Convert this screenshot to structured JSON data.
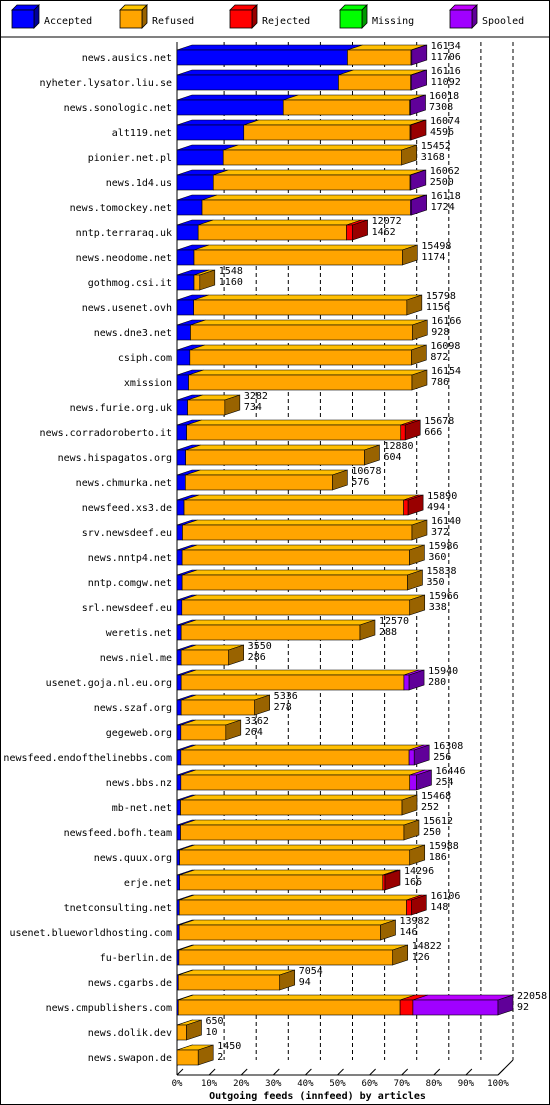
{
  "chart_data": {
    "type": "bar",
    "title": "Outgoing feeds (innfeed) by articles",
    "legend_position": "top",
    "legend": [
      {
        "key": "accepted",
        "label": "Accepted",
        "color": "#0000ff"
      },
      {
        "key": "refused",
        "label": "Refused",
        "color": "#ffa500"
      },
      {
        "key": "rejected",
        "label": "Rejected",
        "color": "#ff0000"
      },
      {
        "key": "missing",
        "label": "Missing",
        "color": "#00ff00"
      },
      {
        "key": "spooled",
        "label": "Spooled",
        "color": "#a000ff"
      }
    ],
    "x_ticks": [
      "0%",
      "10%",
      "20%",
      "30%",
      "40%",
      "50%",
      "60%",
      "70%",
      "80%",
      "90%",
      "100%"
    ],
    "xlim": [
      0,
      100
    ],
    "grid": true,
    "max_total": 22058,
    "rows": [
      {
        "name": "news.ausics.net",
        "total": 16134,
        "accepted": 11706,
        "label_total": "16134",
        "label_accepted": "11706",
        "pct": {
          "accepted": 53.1,
          "refused": 19.8,
          "rejected": 0,
          "spooled": 0.2
        }
      },
      {
        "name": "nyheter.lysator.liu.se",
        "total": 16116,
        "accepted": 11092,
        "label_total": "16116",
        "label_accepted": "11092",
        "pct": {
          "accepted": 50.3,
          "refused": 22.5,
          "rejected": 0,
          "spooled": 0.3
        }
      },
      {
        "name": "news.sonologic.net",
        "total": 16018,
        "accepted": 7308,
        "label_total": "16018",
        "label_accepted": "7308",
        "pct": {
          "accepted": 33.1,
          "refused": 39.4,
          "rejected": 0,
          "spooled": 0.1
        }
      },
      {
        "name": "alt119.net",
        "total": 16074,
        "accepted": 4596,
        "label_total": "16074",
        "label_accepted": "4596",
        "pct": {
          "accepted": 20.8,
          "refused": 51.8,
          "rejected": 0.3,
          "spooled": 0
        }
      },
      {
        "name": "pionier.net.pl",
        "total": 15452,
        "accepted": 3168,
        "label_total": "15452",
        "label_accepted": "3168",
        "pct": {
          "accepted": 14.4,
          "refused": 55.6,
          "rejected": 0,
          "spooled": 0
        }
      },
      {
        "name": "news.1d4.us",
        "total": 16062,
        "accepted": 2500,
        "label_total": "16062",
        "label_accepted": "2500",
        "pct": {
          "accepted": 11.3,
          "refused": 61.3,
          "rejected": 0,
          "spooled": 0.2
        }
      },
      {
        "name": "news.tomockey.net",
        "total": 16118,
        "accepted": 1724,
        "label_total": "16118",
        "label_accepted": "1724",
        "pct": {
          "accepted": 7.8,
          "refused": 64.9,
          "rejected": 0,
          "spooled": 0.4
        }
      },
      {
        "name": "nntp.terraraq.uk",
        "total": 12072,
        "accepted": 1462,
        "label_total": "12072",
        "label_accepted": "1462",
        "pct": {
          "accepted": 6.6,
          "refused": 46.2,
          "rejected": 1.9,
          "spooled": 0
        }
      },
      {
        "name": "news.neodome.net",
        "total": 15498,
        "accepted": 1174,
        "label_total": "15498",
        "label_accepted": "1174",
        "pct": {
          "accepted": 5.3,
          "refused": 64.9,
          "rejected": 0,
          "spooled": 0
        }
      },
      {
        "name": "gothmog.csi.it",
        "total": 1548,
        "accepted": 1160,
        "label_total": "1548",
        "label_accepted": "1160",
        "pct": {
          "accepted": 5.3,
          "refused": 1.8,
          "rejected": 0,
          "spooled": 0
        }
      },
      {
        "name": "news.usenet.ovh",
        "total": 15798,
        "accepted": 1156,
        "label_total": "15798",
        "label_accepted": "1156",
        "pct": {
          "accepted": 5.2,
          "refused": 66.4,
          "rejected": 0,
          "spooled": 0
        }
      },
      {
        "name": "news.dne3.net",
        "total": 16166,
        "accepted": 928,
        "label_total": "16166",
        "label_accepted": "928",
        "pct": {
          "accepted": 4.2,
          "refused": 69.1,
          "rejected": 0,
          "spooled": 0
        }
      },
      {
        "name": "csiph.com",
        "total": 16098,
        "accepted": 872,
        "label_total": "16098",
        "label_accepted": "872",
        "pct": {
          "accepted": 4.0,
          "refused": 69.0,
          "rejected": 0,
          "spooled": 0
        }
      },
      {
        "name": "xmission",
        "total": 16154,
        "accepted": 786,
        "label_total": "16154",
        "label_accepted": "786",
        "pct": {
          "accepted": 3.6,
          "refused": 69.6,
          "rejected": 0,
          "spooled": 0
        }
      },
      {
        "name": "news.furie.org.uk",
        "total": 3282,
        "accepted": 734,
        "label_total": "3282",
        "label_accepted": "734",
        "pct": {
          "accepted": 3.3,
          "refused": 11.6,
          "rejected": 0,
          "spooled": 0
        }
      },
      {
        "name": "news.corradoroberto.it",
        "total": 15678,
        "accepted": 666,
        "label_total": "15678",
        "label_accepted": "666",
        "pct": {
          "accepted": 3.0,
          "refused": 66.7,
          "rejected": 1.4,
          "spooled": 0
        }
      },
      {
        "name": "news.hispagatos.org",
        "total": 12880,
        "accepted": 604,
        "label_total": "12880",
        "label_accepted": "604",
        "pct": {
          "accepted": 2.7,
          "refused": 55.7,
          "rejected": 0,
          "spooled": 0
        }
      },
      {
        "name": "news.chmurka.net",
        "total": 10678,
        "accepted": 576,
        "label_total": "10678",
        "label_accepted": "576",
        "pct": {
          "accepted": 2.6,
          "refused": 45.8,
          "rejected": 0,
          "spooled": 0
        }
      },
      {
        "name": "newsfeed.xs3.de",
        "total": 15890,
        "accepted": 494,
        "label_total": "15890",
        "label_accepted": "494",
        "pct": {
          "accepted": 2.2,
          "refused": 68.4,
          "rejected": 1.4,
          "spooled": 0
        }
      },
      {
        "name": "srv.newsdeef.eu",
        "total": 16140,
        "accepted": 372,
        "label_total": "16140",
        "label_accepted": "372",
        "pct": {
          "accepted": 1.7,
          "refused": 71.5,
          "rejected": 0,
          "spooled": 0
        }
      },
      {
        "name": "news.nntp4.net",
        "total": 15986,
        "accepted": 360,
        "label_total": "15986",
        "label_accepted": "360",
        "pct": {
          "accepted": 1.6,
          "refused": 70.8,
          "rejected": 0,
          "spooled": 0
        }
      },
      {
        "name": "nntp.comgw.net",
        "total": 15838,
        "accepted": 350,
        "label_total": "15838",
        "label_accepted": "350",
        "pct": {
          "accepted": 1.6,
          "refused": 70.2,
          "rejected": 0,
          "spooled": 0
        }
      },
      {
        "name": "srl.newsdeef.eu",
        "total": 15966,
        "accepted": 338,
        "label_total": "15966",
        "label_accepted": "338",
        "pct": {
          "accepted": 1.5,
          "refused": 71.0,
          "rejected": 0,
          "spooled": 0
        }
      },
      {
        "name": "weretis.net",
        "total": 12570,
        "accepted": 288,
        "label_total": "12570",
        "label_accepted": "288",
        "pct": {
          "accepted": 1.3,
          "refused": 55.7,
          "rejected": 0,
          "spooled": 0
        }
      },
      {
        "name": "news.niel.me",
        "total": 3550,
        "accepted": 286,
        "label_total": "3550",
        "label_accepted": "286",
        "pct": {
          "accepted": 1.3,
          "refused": 14.8,
          "rejected": 0,
          "spooled": 0
        }
      },
      {
        "name": "usenet.goja.nl.eu.org",
        "total": 15940,
        "accepted": 280,
        "label_total": "15940",
        "label_accepted": "280",
        "pct": {
          "accepted": 1.3,
          "refused": 69.4,
          "rejected": 0,
          "spooled": 1.6
        }
      },
      {
        "name": "news.szaf.org",
        "total": 5336,
        "accepted": 278,
        "label_total": "5336",
        "label_accepted": "278",
        "pct": {
          "accepted": 1.3,
          "refused": 22.9,
          "rejected": 0,
          "spooled": 0
        }
      },
      {
        "name": "gegeweb.org",
        "total": 3362,
        "accepted": 264,
        "label_total": "3362",
        "label_accepted": "264",
        "pct": {
          "accepted": 1.2,
          "refused": 14.0,
          "rejected": 0,
          "spooled": 0
        }
      },
      {
        "name": "newsfeed.endofthelinebbs.com",
        "total": 16308,
        "accepted": 256,
        "label_total": "16308",
        "label_accepted": "256",
        "pct": {
          "accepted": 1.2,
          "refused": 71.1,
          "rejected": 0,
          "spooled": 1.6
        }
      },
      {
        "name": "news.bbs.nz",
        "total": 16446,
        "accepted": 254,
        "label_total": "16446",
        "label_accepted": "254",
        "pct": {
          "accepted": 1.2,
          "refused": 71.3,
          "rejected": 0,
          "spooled": 2.1
        }
      },
      {
        "name": "mb-net.net",
        "total": 15468,
        "accepted": 252,
        "label_total": "15468",
        "label_accepted": "252",
        "pct": {
          "accepted": 1.1,
          "refused": 69.0,
          "rejected": 0,
          "spooled": 0
        }
      },
      {
        "name": "newsfeed.bofh.team",
        "total": 15612,
        "accepted": 250,
        "label_total": "15612",
        "label_accepted": "250",
        "pct": {
          "accepted": 1.1,
          "refused": 69.6,
          "rejected": 0,
          "spooled": 0
        }
      },
      {
        "name": "news.quux.org",
        "total": 15988,
        "accepted": 186,
        "label_total": "15988",
        "label_accepted": "186",
        "pct": {
          "accepted": 0.8,
          "refused": 71.7,
          "rejected": 0,
          "spooled": 0
        }
      },
      {
        "name": "erje.net",
        "total": 14296,
        "accepted": 166,
        "label_total": "14296",
        "label_accepted": "166",
        "pct": {
          "accepted": 0.8,
          "refused": 63.3,
          "rejected": 0.7,
          "spooled": 0
        }
      },
      {
        "name": "tnetconsulting.net",
        "total": 16106,
        "accepted": 148,
        "label_total": "16106",
        "label_accepted": "148",
        "pct": {
          "accepted": 0.7,
          "refused": 70.8,
          "rejected": 1.5,
          "spooled": 0
        }
      },
      {
        "name": "usenet.blueworldhosting.com",
        "total": 13982,
        "accepted": 146,
        "label_total": "13982",
        "label_accepted": "146",
        "pct": {
          "accepted": 0.7,
          "refused": 62.7,
          "rejected": 0,
          "spooled": 0
        }
      },
      {
        "name": "fu-berlin.de",
        "total": 14822,
        "accepted": 126,
        "label_total": "14822",
        "label_accepted": "126",
        "pct": {
          "accepted": 0.6,
          "refused": 66.6,
          "rejected": 0,
          "spooled": 0
        }
      },
      {
        "name": "news.cgarbs.de",
        "total": 7054,
        "accepted": 94,
        "label_total": "7054",
        "label_accepted": "94",
        "pct": {
          "accepted": 0.4,
          "refused": 31.6,
          "rejected": 0,
          "spooled": 0
        }
      },
      {
        "name": "news.cmpublishers.com",
        "total": 22058,
        "accepted": 92,
        "label_total": "22058",
        "label_accepted": "92",
        "pct": {
          "accepted": 0.4,
          "refused": 69.1,
          "rejected": 4.0,
          "spooled": 26.5
        }
      },
      {
        "name": "news.dolik.dev",
        "total": 650,
        "accepted": 10,
        "label_total": "650",
        "label_accepted": "10",
        "pct": {
          "accepted": 0.05,
          "refused": 2.9,
          "rejected": 0,
          "spooled": 0
        }
      },
      {
        "name": "news.swapon.de",
        "total": 1450,
        "accepted": 2,
        "label_total": "1450",
        "label_accepted": "2",
        "pct": {
          "accepted": 0.01,
          "refused": 6.6,
          "rejected": 0,
          "spooled": 0
        }
      }
    ]
  }
}
